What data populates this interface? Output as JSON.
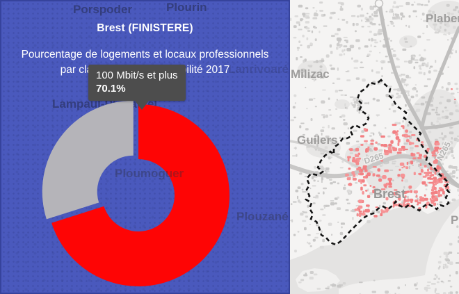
{
  "panel": {
    "title": "Brest (FINISTERE)",
    "subtitle_line1": "Pourcentage de logements et locaux professionnels",
    "subtitle_line2": "par classe de débit - Eligibilité 2017",
    "bg_color": "#4a59bd",
    "border_color": "#36439c",
    "faded_labels": [
      {
        "text": "Porspoder"
      },
      {
        "text": "Plourin"
      },
      {
        "text": "Lanrivoaré"
      },
      {
        "text": "Lampaul-Plouarzel"
      },
      {
        "text": "Ploumoguer"
      },
      {
        "text": "Plouzané"
      }
    ]
  },
  "tooltip": {
    "label": "100 Mbit/s et plus",
    "value": "70.1%",
    "bg": "#4d4d4d",
    "text_color": "#ffffff"
  },
  "chart_data": {
    "type": "pie",
    "donut": true,
    "title": "Pourcentage de logements et locaux professionnels par classe de débit - Eligibilité 2017",
    "legend_position": "none",
    "start_angle_deg": 0,
    "slices": [
      {
        "label": "100 Mbit/s et plus",
        "value": 70.1,
        "color": "#fe0505",
        "exploded": false
      },
      {
        "label": "",
        "value": 29.9,
        "color": "#b5b4b9",
        "exploded": true
      }
    ]
  },
  "map": {
    "region_highlighted": "Brest",
    "highlight_color": "#f4898b",
    "boundary_style": "dashed-black",
    "place_labels": [
      {
        "text": "Plabennec"
      },
      {
        "text": "Milizac"
      },
      {
        "text": "Guilers"
      },
      {
        "text": "Brest"
      },
      {
        "text": "Pl"
      }
    ],
    "road_labels": [
      {
        "text": "D265"
      },
      {
        "text": "N265"
      }
    ]
  }
}
